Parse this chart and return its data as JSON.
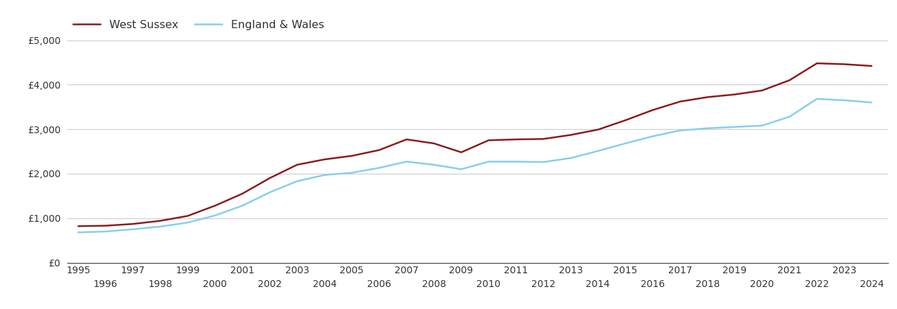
{
  "west_sussex": {
    "years": [
      1995,
      1996,
      1997,
      1998,
      1999,
      2000,
      2001,
      2002,
      2003,
      2004,
      2005,
      2006,
      2007,
      2008,
      2009,
      2010,
      2011,
      2012,
      2013,
      2014,
      2015,
      2016,
      2017,
      2018,
      2019,
      2020,
      2021,
      2022,
      2023,
      2024
    ],
    "values": [
      820,
      830,
      870,
      940,
      1050,
      1280,
      1550,
      1900,
      2200,
      2320,
      2400,
      2530,
      2770,
      2680,
      2480,
      2750,
      2770,
      2780,
      2870,
      2990,
      3200,
      3430,
      3620,
      3720,
      3780,
      3870,
      4100,
      4480,
      4460,
      4420
    ]
  },
  "england_wales": {
    "years": [
      1995,
      1996,
      1997,
      1998,
      1999,
      2000,
      2001,
      2002,
      2003,
      2004,
      2005,
      2006,
      2007,
      2008,
      2009,
      2010,
      2011,
      2012,
      2013,
      2014,
      2015,
      2016,
      2017,
      2018,
      2019,
      2020,
      2021,
      2022,
      2023,
      2024
    ],
    "values": [
      680,
      700,
      750,
      810,
      900,
      1060,
      1280,
      1580,
      1830,
      1970,
      2020,
      2130,
      2270,
      2200,
      2100,
      2270,
      2270,
      2260,
      2350,
      2510,
      2680,
      2840,
      2970,
      3020,
      3050,
      3080,
      3280,
      3680,
      3650,
      3600
    ]
  },
  "west_sussex_color": "#8B1A1A",
  "england_wales_color": "#87CEEB",
  "west_sussex_label": "West Sussex",
  "england_wales_label": "England & Wales",
  "ylim": [
    0,
    5000
  ],
  "yticks": [
    0,
    1000,
    2000,
    3000,
    4000,
    5000
  ],
  "ytick_labels": [
    "£0",
    "£1,000",
    "£2,000",
    "£3,000",
    "£4,000",
    "£5,000"
  ],
  "xlim_min": 1994.6,
  "xlim_max": 2024.6,
  "background_color": "#ffffff",
  "grid_color": "#cccccc",
  "line_width": 1.8,
  "legend_fontsize": 11.5,
  "tick_fontsize": 10,
  "odd_years": [
    1995,
    1997,
    1999,
    2001,
    2003,
    2005,
    2007,
    2009,
    2011,
    2013,
    2015,
    2017,
    2019,
    2021,
    2023
  ],
  "even_years": [
    1996,
    1998,
    2000,
    2002,
    2004,
    2006,
    2008,
    2010,
    2012,
    2014,
    2016,
    2018,
    2020,
    2022,
    2024
  ]
}
